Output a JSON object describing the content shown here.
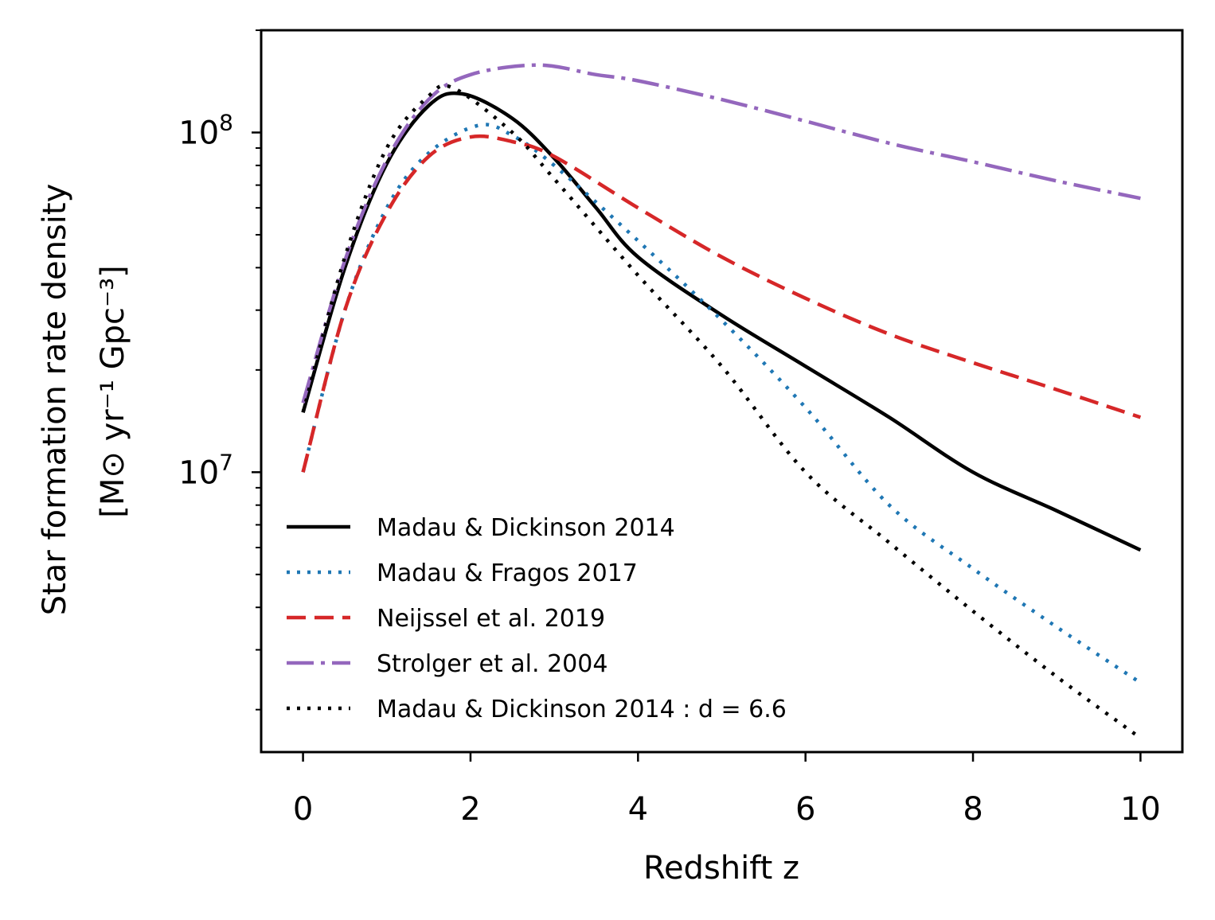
{
  "chart_data": {
    "type": "line",
    "title": "",
    "xlabel": "Redshift z",
    "ylabel_line1": "Star formation rate density",
    "ylabel_line2": "[M⊙ yr⁻¹ Gpc⁻³]",
    "xlim": [
      -0.5,
      10.5
    ],
    "ylim": [
      1500000.0,
      200000000.0
    ],
    "yscale": "log",
    "x_ticks": [
      0,
      2,
      4,
      6,
      8,
      10
    ],
    "x_tick_labels": [
      "0",
      "2",
      "4",
      "6",
      "8",
      "10"
    ],
    "y_major_ticks": [
      10000000.0,
      100000000.0
    ],
    "y_major_labels": [
      {
        "base": "10",
        "exp": "7"
      },
      {
        "base": "10",
        "exp": "8"
      }
    ],
    "y_minor_ticks": [
      2000000.0,
      3000000.0,
      4000000.0,
      5000000.0,
      6000000.0,
      7000000.0,
      8000000.0,
      9000000.0,
      20000000.0,
      30000000.0,
      40000000.0,
      50000000.0,
      60000000.0,
      70000000.0,
      80000000.0,
      90000000.0,
      200000000.0
    ],
    "legend_position": "lower-left",
    "series": [
      {
        "name": "Madau & Dickinson 2014",
        "color": "#000000",
        "style": "solid",
        "x": [
          0,
          0.5,
          1,
          1.5,
          1.9,
          2.5,
          3,
          3.5,
          4,
          5,
          6,
          7,
          8,
          9,
          10
        ],
        "values": [
          15000000.0,
          40000000.0,
          81000000.0,
          120000000.0,
          130000000.0,
          110000000.0,
          84000000.0,
          60000000.0,
          43000000.0,
          29000000.0,
          20500000.0,
          14500000.0,
          10000000.0,
          7700000.0,
          5900000.0
        ]
      },
      {
        "name": "Madau & Fragos 2017",
        "color": "#1f77b4",
        "style": "dotted",
        "x": [
          0,
          0.5,
          1,
          1.5,
          2.1,
          2.5,
          3,
          4,
          5,
          6,
          7,
          8,
          9,
          10
        ],
        "values": [
          10000000.0,
          30000000.0,
          60000000.0,
          87000000.0,
          105000000.0,
          98000000.0,
          80000000.0,
          48000000.0,
          28000000.0,
          15500000.0,
          8000000.0,
          5200000.0,
          3500000.0,
          2400000.0
        ]
      },
      {
        "name": "Neijssel et al. 2019",
        "color": "#d62728",
        "style": "dashed",
        "x": [
          0,
          0.5,
          1,
          1.5,
          2,
          2.5,
          3,
          4,
          5,
          6,
          7,
          8,
          9,
          10
        ],
        "values": [
          10000000.0,
          30000000.0,
          58000000.0,
          85000000.0,
          97000000.0,
          94000000.0,
          85000000.0,
          60000000.0,
          43000000.0,
          32500000.0,
          25500000.0,
          21000000.0,
          17500000.0,
          14500000.0
        ]
      },
      {
        "name": "Strolger et al. 2004",
        "color": "#9467bd",
        "style": "dashdot",
        "x": [
          0,
          0.5,
          1,
          1.5,
          2,
          2.8,
          3.5,
          4,
          5,
          6,
          7,
          8,
          9,
          10
        ],
        "values": [
          16000000.0,
          42000000.0,
          83000000.0,
          125000000.0,
          148000000.0,
          158000000.0,
          148000000.0,
          142000000.0,
          125000000.0,
          108000000.0,
          93000000.0,
          82000000.0,
          72000000.0,
          64000000.0
        ]
      },
      {
        "name": "Madau & Dickinson 2014 : d = 6.6",
        "color": "#000000",
        "style": "dotted",
        "x": [
          0,
          0.5,
          1,
          1.5,
          1.8,
          2.5,
          3,
          4,
          5,
          6,
          7,
          8,
          9,
          10
        ],
        "values": [
          15000000.0,
          43000000.0,
          90000000.0,
          128000000.0,
          135000000.0,
          100000000.0,
          73000000.0,
          38000000.0,
          20500000.0,
          10000000.0,
          6200000.0,
          3900000.0,
          2500000.0,
          1650000.0
        ]
      }
    ]
  }
}
